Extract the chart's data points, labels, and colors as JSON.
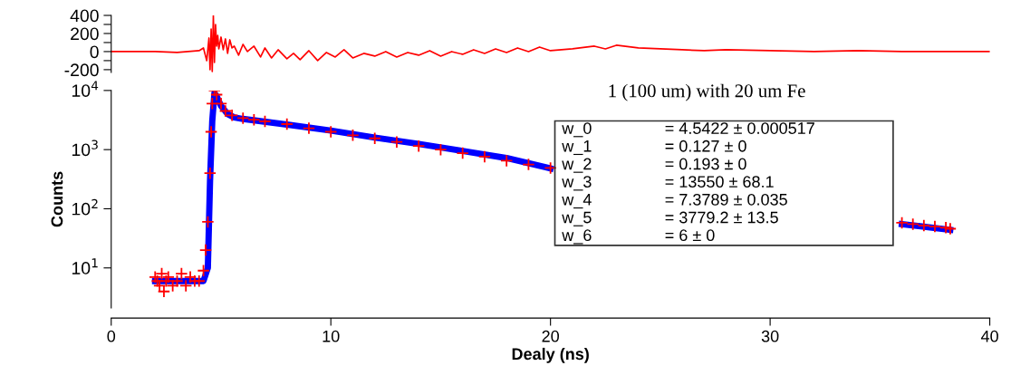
{
  "chart_data": [
    {
      "type": "line",
      "xlim": [
        0,
        40
      ],
      "ylim": [
        -230,
        400
      ],
      "tick_labels": "y",
      "grid": false,
      "yticks": [
        -200,
        {
          "value": -100,
          "label": null
        },
        0,
        {
          "value": 100,
          "label": null
        },
        200,
        {
          "value": 300,
          "label": null
        },
        400
      ],
      "series": [
        {
          "color": "#ff0000",
          "x": [
            0,
            2,
            3,
            3.5,
            4.0,
            4.2,
            4.35,
            4.45,
            4.5,
            4.55,
            4.6,
            4.65,
            4.7,
            4.75,
            4.8,
            4.85,
            4.9,
            5.0,
            5.1,
            5.2,
            5.3,
            5.4,
            5.5,
            5.6,
            5.8,
            6.0,
            6.2,
            6.5,
            6.8,
            7.0,
            7.3,
            7.6,
            8.0,
            8.3,
            8.6,
            9.0,
            9.4,
            9.8,
            10.2,
            10.6,
            11.0,
            11.5,
            12.0,
            12.5,
            13.0,
            13.5,
            14.0,
            14.5,
            15.0,
            15.5,
            16.0,
            16.5,
            17.0,
            17.5,
            18.0,
            18.5,
            19.0,
            19.5,
            20.0,
            21.0,
            22.0,
            22.5,
            23.0,
            24.0,
            25.0,
            26.0,
            27.0,
            28.0,
            30.0,
            32.0,
            34.0,
            36.0,
            38.0,
            40.0
          ],
          "values": [
            0,
            0,
            -10,
            0,
            10,
            40,
            -100,
            150,
            -200,
            250,
            -220,
            400,
            -120,
            300,
            60,
            180,
            30,
            160,
            20,
            140,
            -20,
            130,
            40,
            60,
            -40,
            80,
            0,
            60,
            -60,
            40,
            -70,
            20,
            -80,
            -20,
            -90,
            10,
            -100,
            -10,
            -60,
            20,
            -70,
            -20,
            -50,
            0,
            -60,
            -10,
            -40,
            10,
            -50,
            0,
            -30,
            20,
            -20,
            30,
            -10,
            40,
            0,
            50,
            10,
            30,
            60,
            30,
            70,
            40,
            30,
            20,
            10,
            20,
            10,
            0,
            10,
            0,
            0,
            0
          ]
        }
      ]
    },
    {
      "type": "scatter",
      "xlim": [
        0,
        40
      ],
      "xticks": [
        0,
        10,
        20,
        30,
        40
      ],
      "log": true,
      "ylim": [
        2.1,
        10000
      ],
      "grid": false,
      "yticks": [
        {
          "value": 10,
          "label": "10$^{1}$"
        },
        {
          "value": 100,
          "label": "10$^{2}$"
        },
        {
          "value": 1000,
          "label": "10$^{3}$"
        },
        {
          "value": 10000,
          "label": "10$^{4}$"
        }
      ],
      "xlabel": "Dealy (ns)",
      "ylabel": "Counts",
      "annotations": [
        "1 (100 um) with 20 um Fe",
        "w_0\t= 4.5422 ± 0.000517",
        "w_1\t= 0.127 ± 0",
        "w_2\t= 0.193 ± 0",
        "w_3\t= 13550 ± 68.1",
        "w_4\t= 7.3789 ± 0.035",
        "w_5\t= 3779.2 ± 13.5",
        "w_6\t= 6 ± 0"
      ],
      "series": [
        {
          "type": "scatter",
          "color": "#ff0000",
          "marker": "cross",
          "x": [
            2.0,
            2.1,
            2.2,
            2.3,
            2.4,
            2.5,
            2.6,
            2.8,
            3.0,
            3.2,
            3.4,
            3.6,
            3.8,
            4.0,
            4.2,
            4.3,
            4.4,
            4.5,
            4.55,
            4.6,
            4.7,
            4.8,
            5.0,
            5.2,
            5.5,
            6.0,
            6.5,
            7.0,
            8.0,
            9.0,
            10.0,
            11.0,
            12.0,
            13.0,
            14.0,
            15.0,
            16.0,
            17.0,
            18.0,
            19.0,
            20.0,
            36.0,
            36.5,
            37.0,
            37.5,
            38.0,
            38.2
          ],
          "values": [
            7,
            6,
            5,
            8,
            4,
            6,
            7,
            5,
            6,
            8,
            5,
            7,
            6,
            6,
            9,
            20,
            60,
            400,
            2000,
            6000,
            10000,
            8500,
            6000,
            4500,
            3800,
            3400,
            3200,
            3000,
            2700,
            2300,
            2000,
            1750,
            1550,
            1350,
            1150,
            1000,
            870,
            760,
            650,
            560,
            490,
            58,
            55,
            52,
            50,
            48,
            46
          ]
        },
        {
          "type": "line",
          "color": "#0000ff",
          "marker": "none",
          "x": [
            2.0,
            4.2,
            4.4,
            4.5,
            4.6,
            4.7,
            4.8,
            5.0,
            5.3,
            5.6,
            6.0,
            8.0,
            10.0,
            12.0,
            14.0,
            16.0,
            18.0,
            20.0,
            null,
            36.0,
            38.2
          ],
          "values": [
            6,
            6,
            10,
            300,
            3000,
            9000,
            8000,
            5500,
            4000,
            3500,
            3300,
            2650,
            2100,
            1600,
            1250,
            950,
            720,
            480,
            null,
            55,
            44
          ]
        }
      ]
    }
  ]
}
